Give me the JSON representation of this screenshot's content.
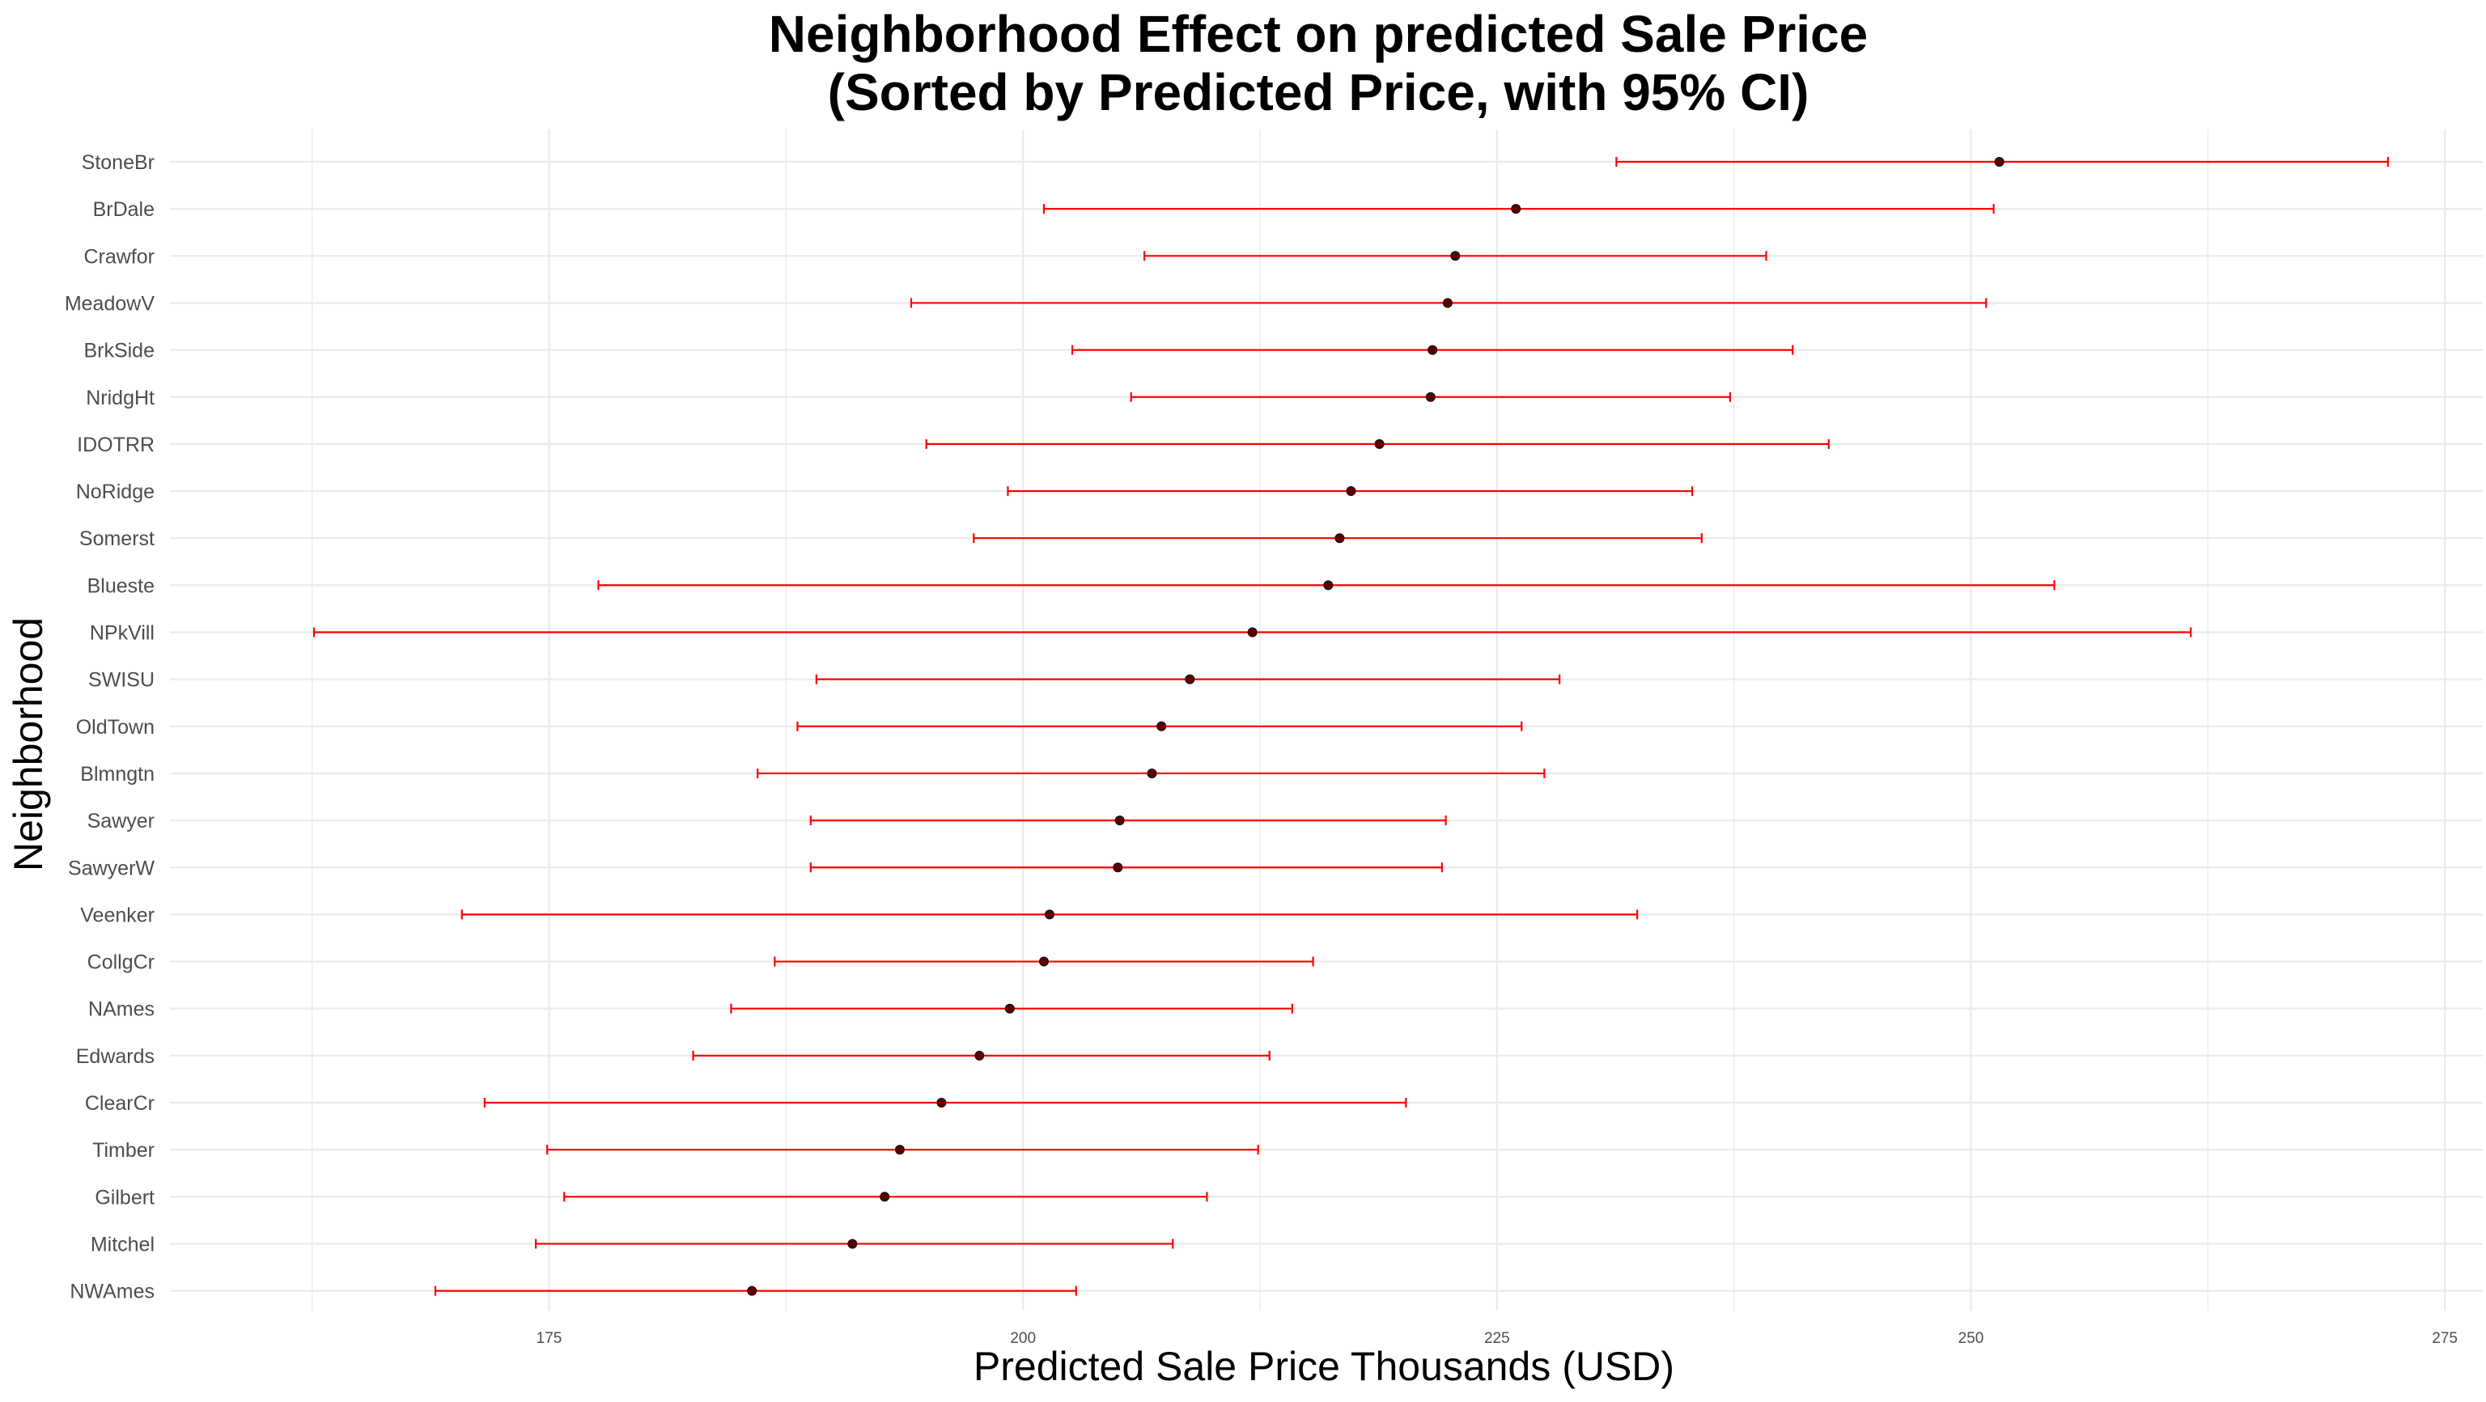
{
  "chart_data": {
    "type": "errorbar-dot",
    "title_lines": [
      "Neighborhood Effect on  predicted Sale Price",
      "(Sorted by Predicted Price, with 95% CI)"
    ],
    "xlabel": "Predicted Sale Price Thousands (USD)",
    "ylabel": "Neighborhood",
    "xlim": [
      155,
      277
    ],
    "x_ticks": [
      175,
      200,
      225,
      250,
      275
    ],
    "grid": true,
    "colors": {
      "interval": "#ff0000",
      "point": "#5a0000",
      "grid": "#ebebeb",
      "text": "#4d4d4d"
    },
    "categories": [
      "StoneBr",
      "BrDale",
      "Crawfor",
      "MeadowV",
      "BrkSide",
      "NridgHt",
      "IDOTRR",
      "NoRidge",
      "Somerst",
      "Blueste",
      "NPkVill",
      "SWISU",
      "OldTown",
      "Blmngtn",
      "Sawyer",
      "SawyerW",
      "Veenker",
      "CollgCr",
      "NAmes",
      "Edwards",
      "ClearCr",
      "Timber",
      "Gilbert",
      "Mitchel",
      "NWAmes"
    ],
    "estimate": [
      251.5,
      226.0,
      222.8,
      222.4,
      221.6,
      221.5,
      218.8,
      217.3,
      216.7,
      216.1,
      212.1,
      208.8,
      207.3,
      206.8,
      205.1,
      205.0,
      201.4,
      201.1,
      199.3,
      197.7,
      195.7,
      193.5,
      192.7,
      191.0,
      185.7
    ],
    "lower": [
      231.3,
      201.1,
      206.4,
      194.1,
      202.6,
      205.7,
      194.9,
      199.2,
      197.4,
      177.6,
      162.6,
      189.1,
      188.1,
      186.0,
      188.8,
      188.8,
      170.4,
      186.9,
      184.6,
      182.6,
      171.6,
      174.9,
      175.8,
      174.3,
      169.0
    ],
    "upper": [
      272.0,
      251.2,
      239.2,
      250.8,
      240.6,
      237.3,
      242.5,
      235.3,
      235.8,
      254.4,
      261.6,
      228.3,
      226.3,
      227.5,
      222.3,
      222.1,
      232.4,
      215.3,
      214.2,
      213.0,
      220.2,
      212.4,
      209.7,
      207.9,
      202.8
    ]
  }
}
